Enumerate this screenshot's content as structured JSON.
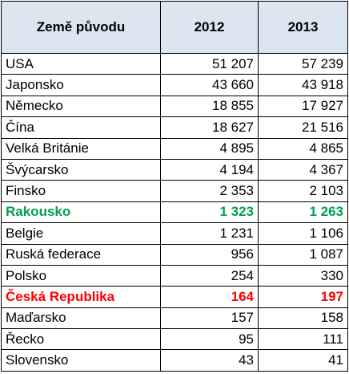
{
  "table": {
    "header": [
      "Země původu",
      "2012",
      "2013"
    ],
    "rows": [
      [
        "USA",
        "51 207",
        "57 239"
      ],
      [
        "Japonsko",
        "43 660",
        "43 918"
      ],
      [
        "Německo",
        "18 855",
        "17 927"
      ],
      [
        "Čína",
        "18 627",
        "21 516"
      ],
      [
        "Velká Británie",
        "4 895",
        "4 865"
      ],
      [
        "Švýcarsko",
        "4 194",
        "4 367"
      ],
      [
        "Finsko",
        "2 353",
        "2 103"
      ],
      [
        "Rakousko",
        "1 323",
        "1 263"
      ],
      [
        "Belgie",
        "1 231",
        "1 106"
      ],
      [
        "Ruská federace",
        "956",
        "1 087"
      ],
      [
        "Polsko",
        "254",
        "330"
      ],
      [
        "Česká Republika",
        "164",
        "197"
      ],
      [
        "Maďarsko",
        "157",
        "158"
      ],
      [
        "Řecko",
        "95",
        "111"
      ],
      [
        "Slovensko",
        "43",
        "41"
      ]
    ]
  }
}
